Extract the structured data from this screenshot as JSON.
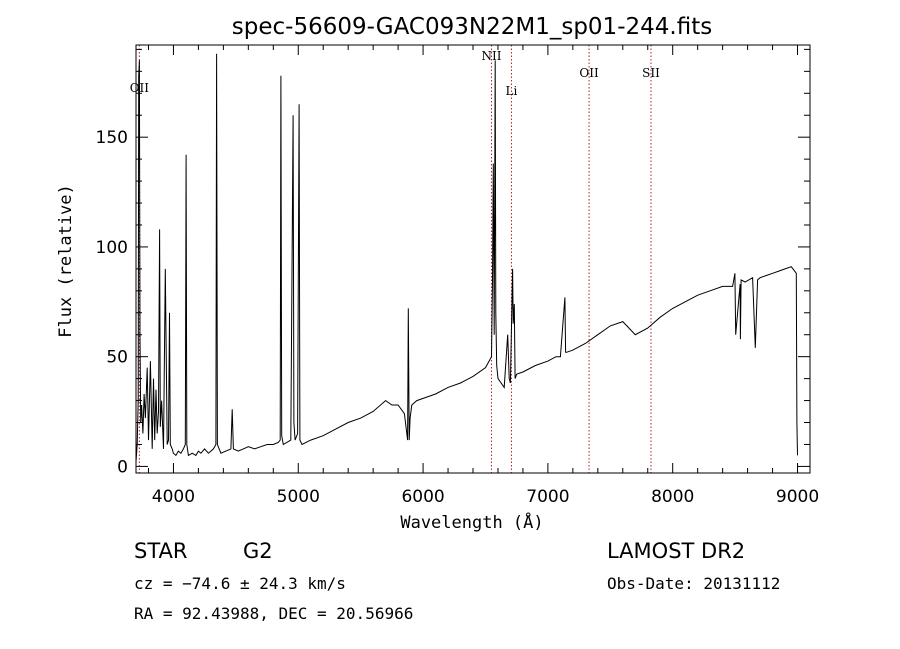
{
  "chart_data": {
    "type": "line",
    "title": "spec-56609-GAC093N22M1_sp01-244.fits",
    "xlabel": "Wavelength (Å)",
    "ylabel": "Flux (relative)",
    "xlim": [
      3700,
      9100
    ],
    "ylim": [
      -3,
      192
    ],
    "x_ticks": [
      4000,
      5000,
      6000,
      7000,
      8000,
      9000
    ],
    "y_ticks": [
      0,
      50,
      100,
      150
    ],
    "grid": false,
    "series": [
      {
        "x": [
          3700,
          3710,
          3718,
          3722,
          3727,
          3732,
          3738,
          3745,
          3755,
          3765,
          3775,
          3790,
          3800,
          3815,
          3830,
          3840,
          3850,
          3860,
          3870,
          3880,
          3889,
          3895,
          3905,
          3920,
          3935,
          3950,
          3960,
          3968,
          3975,
          3990,
          4000,
          4020,
          4040,
          4060,
          4080,
          4095,
          4101,
          4107,
          4120,
          4150,
          4180,
          4200,
          4220,
          4250,
          4280,
          4300,
          4320,
          4340,
          4346,
          4352,
          4380,
          4420,
          4460,
          4471,
          4480,
          4520,
          4560,
          4600,
          4650,
          4700,
          4750,
          4800,
          4840,
          4855,
          4861,
          4867,
          4880,
          4910,
          4940,
          4959,
          4965,
          4975,
          4995,
          5007,
          5013,
          5030,
          5100,
          5200,
          5300,
          5400,
          5500,
          5600,
          5700,
          5750,
          5800,
          5850,
          5876,
          5882,
          5889,
          5896,
          5910,
          5950,
          6000,
          6100,
          6200,
          6300,
          6400,
          6500,
          6548,
          6556,
          6563,
          6570,
          6578,
          6583,
          6590,
          6600,
          6650,
          6678,
          6690,
          6700,
          6717,
          6722,
          6731,
          6737,
          6750,
          6800,
          6900,
          7000,
          7065,
          7100,
          7136,
          7142,
          7150,
          7200,
          7300,
          7400,
          7500,
          7600,
          7700,
          7800,
          7900,
          8000,
          8100,
          8200,
          8300,
          8400,
          8480,
          8498,
          8505,
          8540,
          8542,
          8548,
          8580,
          8640,
          8662,
          8680,
          8700,
          8750,
          8800,
          8850,
          8900,
          8950,
          8990,
          8995,
          9000
        ],
        "values": [
          2,
          10,
          30,
          178,
          185,
          60,
          20,
          28,
          15,
          33,
          22,
          45,
          12,
          48,
          8,
          40,
          12,
          35,
          15,
          25,
          108,
          18,
          30,
          8,
          90,
          10,
          12,
          70,
          10,
          8,
          6,
          5,
          7,
          6,
          8,
          10,
          142,
          10,
          5,
          6,
          5,
          7,
          6,
          8,
          6,
          7,
          8,
          10,
          188,
          10,
          6,
          7,
          8,
          26,
          8,
          7,
          8,
          9,
          8,
          9,
          10,
          10,
          11,
          12,
          178,
          14,
          10,
          11,
          12,
          160,
          20,
          12,
          15,
          165,
          12,
          10,
          12,
          14,
          17,
          20,
          22,
          25,
          30,
          28,
          28,
          24,
          12,
          72,
          12,
          22,
          28,
          30,
          31,
          33,
          36,
          38,
          41,
          45,
          50,
          85,
          138,
          60,
          185,
          70,
          46,
          40,
          36,
          60,
          40,
          38,
          90,
          65,
          74,
          40,
          42,
          43,
          46,
          48,
          50,
          50,
          77,
          52,
          52,
          53,
          56,
          60,
          64,
          66,
          60,
          63,
          68,
          72,
          75,
          78,
          80,
          82,
          82,
          88,
          60,
          83,
          58,
          85,
          84,
          86,
          54,
          85,
          86,
          87,
          88,
          89,
          90,
          91,
          88,
          20,
          5
        ]
      }
    ],
    "line_markers": [
      {
        "label": "OII",
        "x": 3727
      },
      {
        "label": "NII",
        "x": 6548
      },
      {
        "label": "Li",
        "x": 6708
      },
      {
        "label": "OII",
        "x": 7330
      },
      {
        "label": "SII",
        "x": 7826
      }
    ]
  },
  "info": {
    "object_class": "STAR",
    "subclass": "G2",
    "survey": "LAMOST DR2",
    "redshift": "cz = −74.6 ± 24.3 km/s",
    "obs_date": "Obs-Date: 20131112",
    "coords": "RA =  92.43988, DEC =  20.56966"
  },
  "colors": {
    "spectrum": "#000000",
    "marker": "#b22222",
    "axis": "#000000",
    "background": "#ffffff"
  }
}
